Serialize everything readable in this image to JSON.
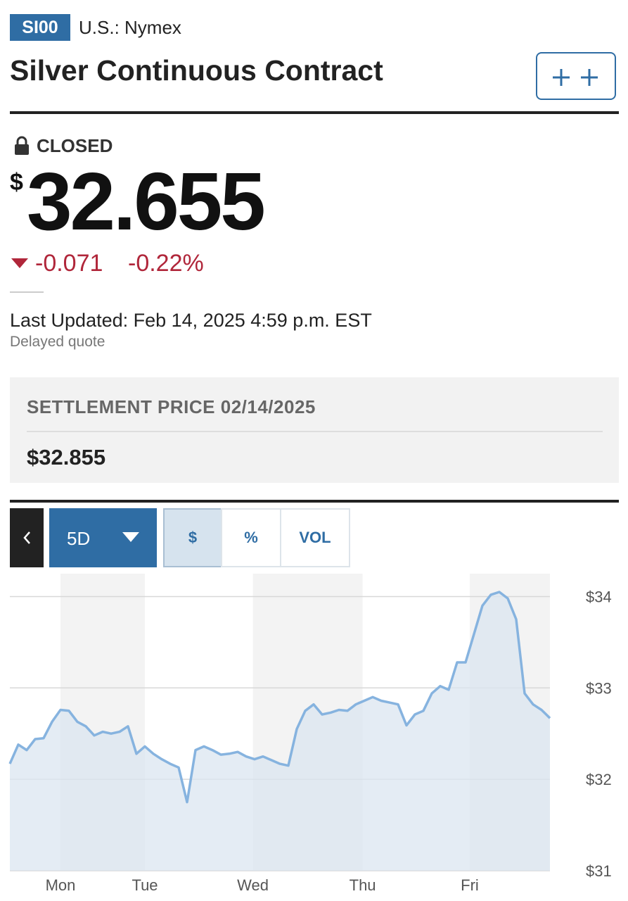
{
  "header": {
    "ticker": "SI00",
    "exchange": "U.S.: Nymex",
    "title": "Silver Continuous Contract"
  },
  "quote": {
    "status": "CLOSED",
    "currency": "$",
    "price": "32.655",
    "change": "-0.071",
    "change_percent": "-0.22%",
    "last_updated": "Last Updated: Feb 14, 2025 4:59 p.m. EST",
    "note": "Delayed quote"
  },
  "settlement": {
    "label": "SETTLEMENT PRICE 02/14/2025",
    "value": "$32.855"
  },
  "controls": {
    "range": "5D",
    "modes": [
      "$",
      "%",
      "VOL"
    ]
  },
  "chart_data": {
    "type": "area",
    "color": "#86b3df",
    "fill": "#dbe6f0",
    "x": [
      0,
      1,
      2,
      3,
      4,
      5,
      6,
      7,
      8,
      9,
      10,
      11,
      12,
      13,
      14,
      15,
      16,
      17,
      18,
      19,
      20,
      21,
      22,
      23,
      24,
      25,
      26,
      27,
      28,
      29,
      30,
      31,
      32,
      33,
      34,
      35,
      36,
      37,
      38,
      39,
      40,
      41,
      42,
      43,
      44,
      45,
      46,
      47,
      48,
      49,
      50,
      51,
      52,
      53,
      54,
      55,
      56,
      57,
      58,
      59,
      60,
      61,
      62,
      63,
      64
    ],
    "values": [
      32.17,
      32.38,
      32.32,
      32.44,
      32.45,
      32.63,
      32.76,
      32.75,
      32.63,
      32.58,
      32.48,
      32.52,
      32.5,
      32.52,
      32.58,
      32.28,
      32.36,
      32.28,
      32.22,
      32.17,
      32.13,
      31.75,
      32.32,
      32.36,
      32.32,
      32.27,
      32.28,
      32.3,
      32.25,
      32.22,
      32.25,
      32.21,
      32.17,
      32.15,
      32.55,
      32.75,
      32.82,
      32.71,
      32.73,
      32.76,
      32.75,
      32.82,
      32.86,
      32.9,
      32.86,
      32.84,
      32.82,
      32.59,
      32.71,
      32.75,
      32.94,
      33.02,
      32.98,
      33.28,
      33.28,
      33.59,
      33.9,
      34.02,
      34.05,
      33.98,
      33.75,
      32.94,
      32.82,
      32.76,
      32.67
    ],
    "xlim": [
      0,
      64
    ],
    "xticks": [
      {
        "value": 6,
        "label": "Mon"
      },
      {
        "value": 16,
        "label": "Tue"
      },
      {
        "value": 28.8,
        "label": "Wed"
      },
      {
        "value": 41.8,
        "label": "Thu"
      },
      {
        "value": 54.5,
        "label": "Fri"
      }
    ],
    "ylim": [
      31,
      34.25
    ],
    "yticks": [
      {
        "value": 31,
        "label": "$31"
      },
      {
        "value": 32,
        "label": "$32"
      },
      {
        "value": 33,
        "label": "$33"
      },
      {
        "value": 34,
        "label": "$34"
      }
    ],
    "grid": true
  }
}
